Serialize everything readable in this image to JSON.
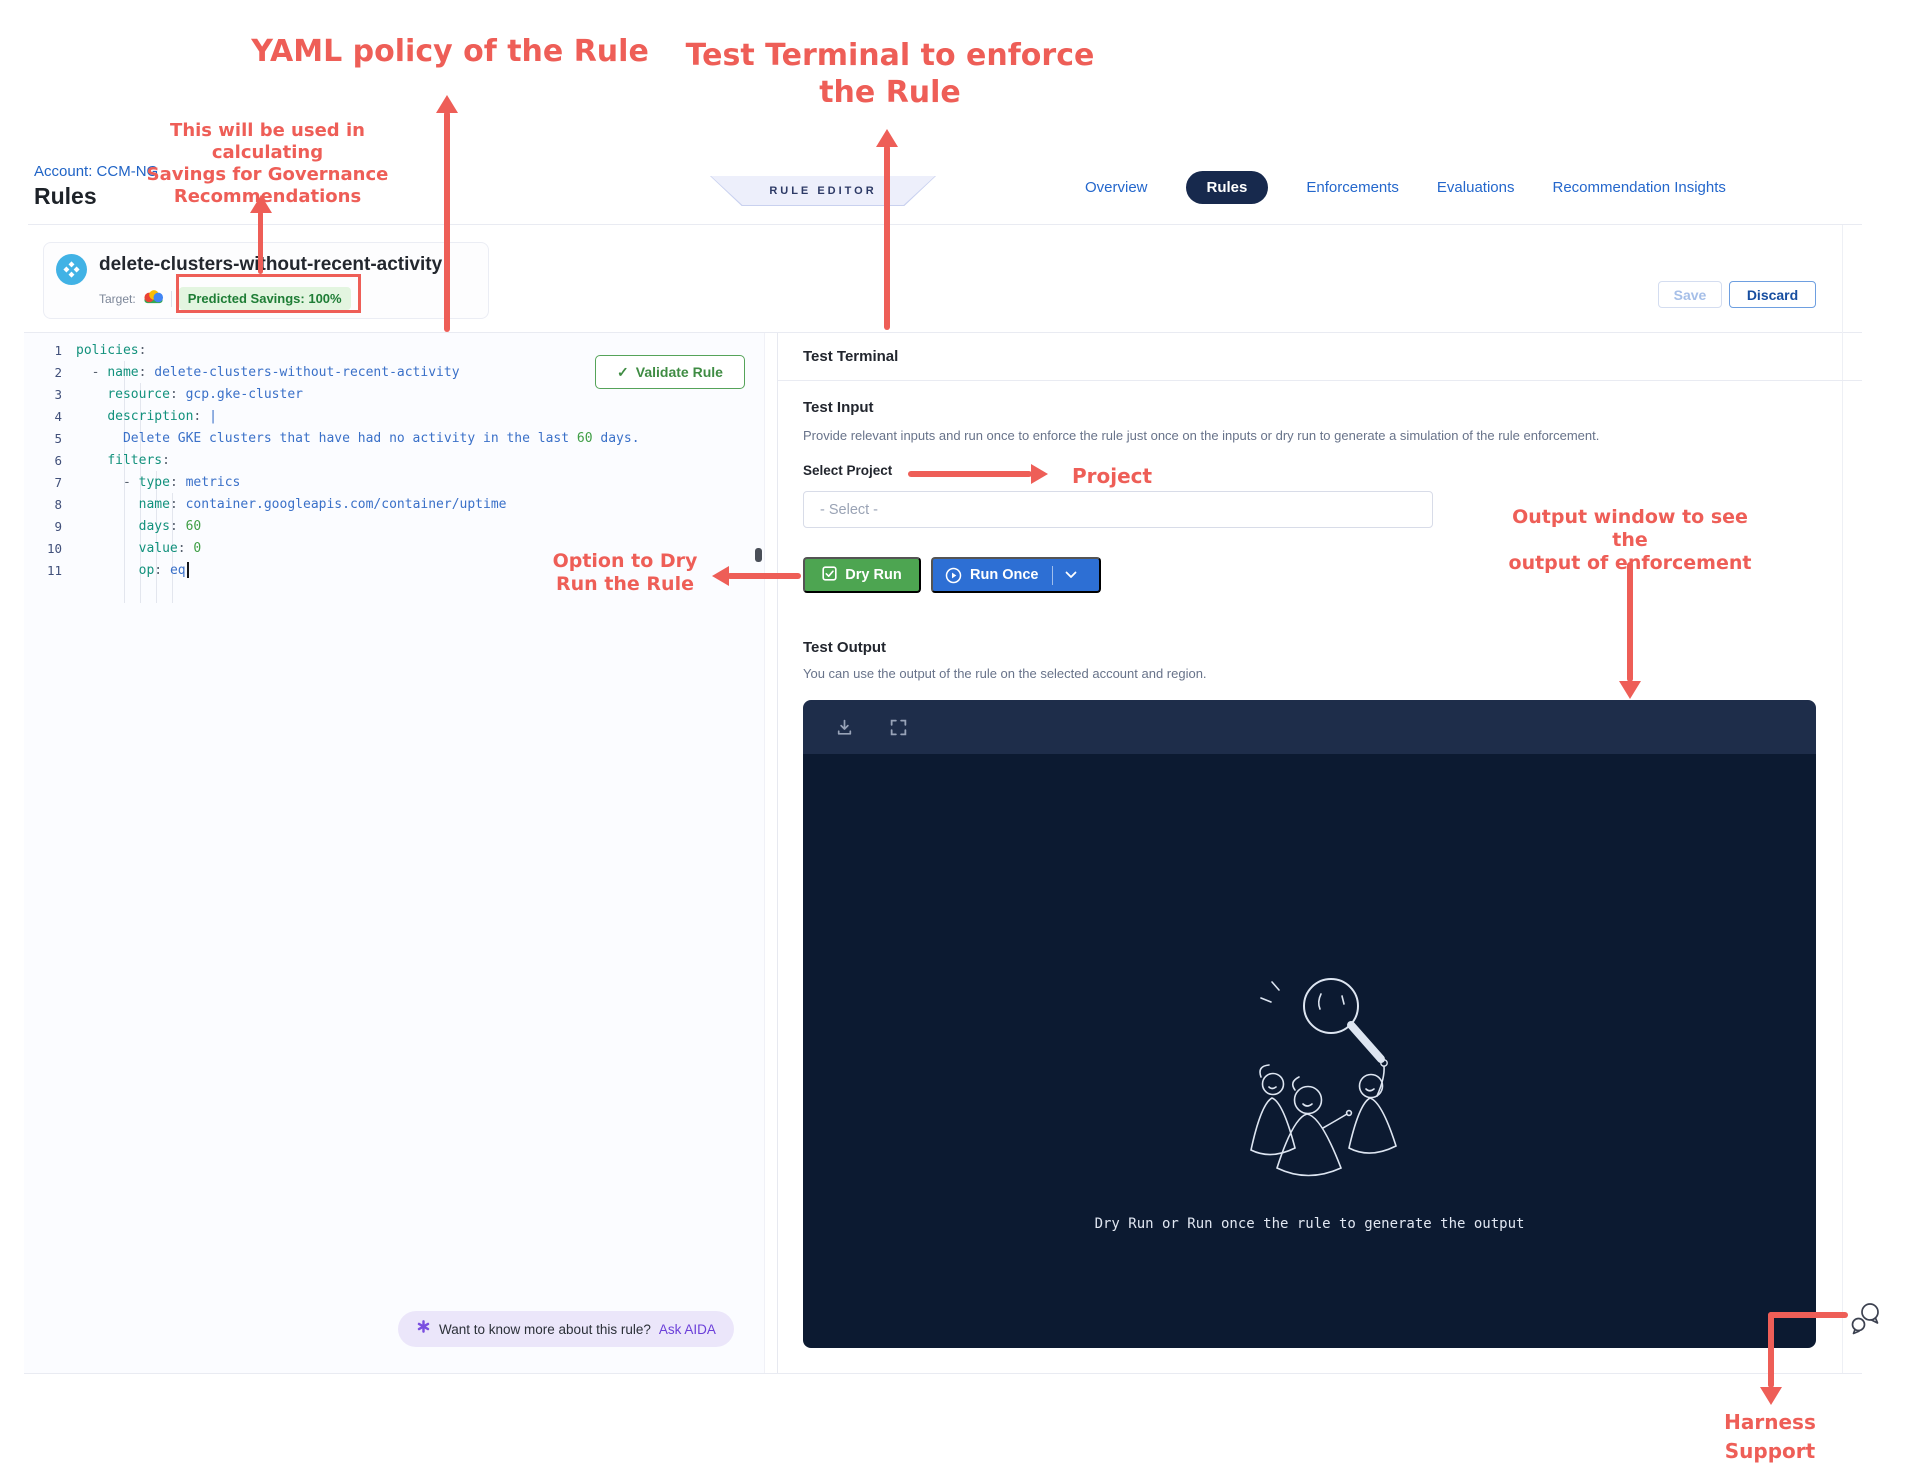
{
  "annotations": {
    "yaml_policy": "YAML policy of the Rule",
    "test_terminal": [
      "Test Terminal to enforce",
      "the Rule"
    ],
    "savings_calc": [
      "This will be used in calculating",
      "Savings for Governance",
      "Recommendations"
    ],
    "project": "Project",
    "dry_run": [
      "Option to Dry",
      "Run the Rule"
    ],
    "output_window": [
      "Output window to see the",
      "output of enforcement"
    ],
    "support": [
      "Harness",
      "Support"
    ],
    "accent_color": "#ee5e57"
  },
  "header": {
    "account": "Account: CCM-NG",
    "page_title": "Rules",
    "rule_editor_badge": "RULE EDITOR",
    "nav": [
      {
        "label": "Overview",
        "active": false
      },
      {
        "label": "Rules",
        "active": true
      },
      {
        "label": "Enforcements",
        "active": false
      },
      {
        "label": "Evaluations",
        "active": false
      },
      {
        "label": "Recommendation Insights",
        "active": false
      }
    ],
    "save_label": "Save",
    "discard_label": "Discard"
  },
  "rule_card": {
    "title": "delete-clusters-without-recent-activity",
    "target_label": "Target:",
    "target_icon": "gcp-cloud-icon",
    "predicted_savings": "Predicted Savings: 100%",
    "savings_bg": "#e3f5e0",
    "savings_color": "#1e7d35"
  },
  "editor": {
    "validate_label": "Validate Rule",
    "lines": [
      {
        "n": 1,
        "parts": [
          [
            "k",
            "policies"
          ],
          [
            "tp",
            ":"
          ]
        ]
      },
      {
        "n": 2,
        "parts": [
          [
            "p",
            "  - "
          ],
          [
            "k",
            "name"
          ],
          [
            "p",
            ": "
          ],
          [
            "v",
            "delete-clusters-without-recent-activity"
          ]
        ]
      },
      {
        "n": 3,
        "parts": [
          [
            "p",
            "    "
          ],
          [
            "k",
            "resource"
          ],
          [
            "p",
            ": "
          ],
          [
            "v",
            "gcp.gke-cluster"
          ]
        ]
      },
      {
        "n": 4,
        "parts": [
          [
            "p",
            "    "
          ],
          [
            "k",
            "description"
          ],
          [
            "p",
            ": "
          ],
          [
            "v",
            "|"
          ]
        ]
      },
      {
        "n": 5,
        "parts": [
          [
            "p",
            "      "
          ],
          [
            "v",
            "Delete GKE clusters that have had no activity in the last "
          ],
          [
            "n",
            "60"
          ],
          [
            "v",
            " days."
          ]
        ]
      },
      {
        "n": 6,
        "parts": [
          [
            "p",
            "    "
          ],
          [
            "k",
            "filters"
          ],
          [
            "tp",
            ":"
          ]
        ]
      },
      {
        "n": 7,
        "parts": [
          [
            "p",
            "      - "
          ],
          [
            "k",
            "type"
          ],
          [
            "p",
            ": "
          ],
          [
            "v",
            "metrics"
          ]
        ]
      },
      {
        "n": 8,
        "parts": [
          [
            "p",
            "        "
          ],
          [
            "k",
            "name"
          ],
          [
            "p",
            ": "
          ],
          [
            "v",
            "container.googleapis.com/container/uptime"
          ]
        ]
      },
      {
        "n": 9,
        "parts": [
          [
            "p",
            "        "
          ],
          [
            "k",
            "days"
          ],
          [
            "p",
            ": "
          ],
          [
            "n",
            "60"
          ]
        ]
      },
      {
        "n": 10,
        "parts": [
          [
            "p",
            "        "
          ],
          [
            "k",
            "value"
          ],
          [
            "p",
            ": "
          ],
          [
            "n",
            "0"
          ]
        ]
      },
      {
        "n": 11,
        "parts": [
          [
            "p",
            "        "
          ],
          [
            "k",
            "op"
          ],
          [
            "p",
            ": "
          ],
          [
            "v",
            "eq"
          ]
        ],
        "cursor": true
      }
    ],
    "aida": {
      "icon": "aida-sparkle-icon",
      "question": "Want to know more about this rule?",
      "link": "Ask AIDA"
    }
  },
  "test_terminal": {
    "title": "Test Terminal",
    "input_title": "Test Input",
    "input_desc": "Provide relevant inputs and run once to enforce the rule just once on the inputs or dry run to generate a simulation of the rule enforcement.",
    "select_label": "Select Project",
    "select_placeholder": "- Select -",
    "dry_run_label": "Dry Run",
    "run_once_label": "Run Once",
    "output_title": "Test Output",
    "output_desc": "You can use the output of the rule on the selected account and region.",
    "terminal_message": "Dry Run or Run once the rule to generate the output",
    "terminal_header_color": "#1e2d4a",
    "terminal_body_color": "#0c1a31"
  }
}
